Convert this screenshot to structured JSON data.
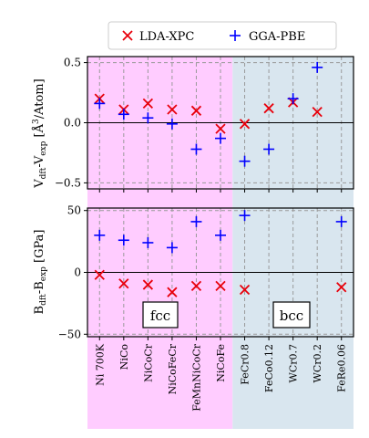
{
  "legend": {
    "entries": [
      {
        "label": "LDA-XPC",
        "color": "#e8000b",
        "marker": "cross-x"
      },
      {
        "label": "GGA-PBE",
        "color": "#0000ff",
        "marker": "plus"
      }
    ],
    "placement": "top-center"
  },
  "colors": {
    "fcc_region": "#ffccff",
    "bcc_region": "#d9e6ef"
  },
  "chart_data": [
    {
      "type": "scatter",
      "ylabel": "V_dft - V_exp [Å^3/Atom]",
      "ylabel_main": "V",
      "ylabel_sub1": "dft",
      "ylabel_mid": "-V",
      "ylabel_sub2": "exp",
      "ylabel_unit_pre": " [Å",
      "ylabel_unit_sup": "3",
      "ylabel_unit_post": "/Atom]",
      "ylim": [
        -0.55,
        0.55
      ],
      "yticks": [
        0.5,
        0.0,
        -0.5
      ],
      "ytick_labels": [
        "0.5",
        "0.0",
        "−0.5"
      ],
      "grid": "dashed",
      "categories": [
        "Ni 700K",
        "NiCo",
        "NiCoCr",
        "NiCoFeCr",
        "FeMnNiCoCr",
        "NiCoFe",
        "FeCr0.8",
        "FeCo0.12",
        "WCr0.7",
        "WCr0.2",
        "FeRe0.06"
      ],
      "series": [
        {
          "name": "LDA-XPC",
          "values": [
            0.2,
            0.11,
            0.16,
            0.11,
            0.1,
            -0.05,
            -0.01,
            0.12,
            0.17,
            0.09,
            null
          ]
        },
        {
          "name": "GGA-PBE",
          "values": [
            0.16,
            0.07,
            0.04,
            -0.01,
            -0.22,
            -0.13,
            -0.32,
            -0.22,
            0.2,
            0.46,
            null
          ]
        }
      ]
    },
    {
      "type": "scatter",
      "ylabel": "B_dft - B_exp [GPa]",
      "ylabel_main": "B",
      "ylabel_sub1": "dft",
      "ylabel_mid": "-B",
      "ylabel_sub2": "exp",
      "ylabel_unit_pre": " [GPa]",
      "ylabel_unit_sup": "",
      "ylabel_unit_post": "",
      "ylim": [
        -52,
        52
      ],
      "yticks": [
        50,
        0,
        -50
      ],
      "ytick_labels": [
        "50",
        "0",
        "−50"
      ],
      "grid": "dashed",
      "categories": [
        "Ni 700K",
        "NiCo",
        "NiCoCr",
        "NiCoFeCr",
        "FeMnNiCoCr",
        "NiCoFe",
        "FeCr0.8",
        "FeCo0.12",
        "WCr0.7",
        "WCr0.2",
        "FeRe0.06"
      ],
      "series": [
        {
          "name": "LDA-XPC",
          "values": [
            -2,
            -9,
            -10,
            -16,
            -11,
            -11,
            -14,
            null,
            null,
            null,
            -12
          ]
        },
        {
          "name": "GGA-PBE",
          "values": [
            30,
            26,
            24,
            20,
            41,
            30,
            46,
            null,
            null,
            null,
            41
          ]
        }
      ],
      "annotations": [
        {
          "text": "fcc",
          "region": "fcc"
        },
        {
          "text": "bcc",
          "region": "bcc"
        }
      ]
    }
  ]
}
